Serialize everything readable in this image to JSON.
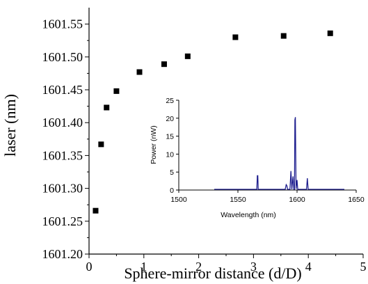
{
  "chart_data": [
    {
      "type": "scatter",
      "title": "",
      "xlabel": "Sphere-mirror distance (d/D)",
      "ylabel": "laser (nm)",
      "xlim": [
        0,
        5
      ],
      "ylim": [
        1601.2,
        1601.575
      ],
      "x_ticks": [
        "0",
        "1",
        "2",
        "3",
        "4",
        "5"
      ],
      "y_ticks": [
        "1601.20",
        "1601.25",
        "1601.30",
        "1601.35",
        "1601.40",
        "1601.45",
        "1601.50",
        "1601.55"
      ],
      "grid": false,
      "marker": "square",
      "color": "#000000",
      "series": [
        {
          "x": [
            0.12,
            0.22,
            0.32,
            0.5,
            0.92,
            1.37,
            1.8,
            2.67,
            3.55,
            4.4
          ],
          "y": [
            1601.266,
            1601.367,
            1601.423,
            1601.448,
            1601.477,
            1601.489,
            1601.501,
            1601.53,
            1601.532,
            1601.536
          ]
        }
      ]
    },
    {
      "type": "line",
      "title": "",
      "xlabel": "Wavelength (nm)",
      "ylabel": "Power (nW)",
      "xlim": [
        1500,
        1650
      ],
      "ylim": [
        0,
        25
      ],
      "x_ticks": [
        "1500",
        "1550",
        "1600",
        "1650"
      ],
      "y_ticks": [
        "0",
        "5",
        "10",
        "15",
        "20",
        "25"
      ],
      "grid": false,
      "color": "#1f1f8f",
      "series": [
        {
          "x": [
            1530,
            1566,
            1566.4,
            1566.8,
            1567.2,
            1590,
            1590.8,
            1591.4,
            1592,
            1594,
            1594.8,
            1595.6,
            1596.6,
            1597.3,
            1597.8,
            1598.2,
            1598.6,
            1599.2,
            1600.0,
            1600.6,
            1601.2,
            1608,
            1608.7,
            1609.4,
            1640
          ],
          "y": [
            0.2,
            0.2,
            4.0,
            4.0,
            0.2,
            0.2,
            1.5,
            1.2,
            0.2,
            0.2,
            5.3,
            0.2,
            3.8,
            0.2,
            0.2,
            19.5,
            20.3,
            0.3,
            2.8,
            0.2,
            0.2,
            0.2,
            3.3,
            0.2,
            0.2
          ]
        }
      ]
    }
  ]
}
